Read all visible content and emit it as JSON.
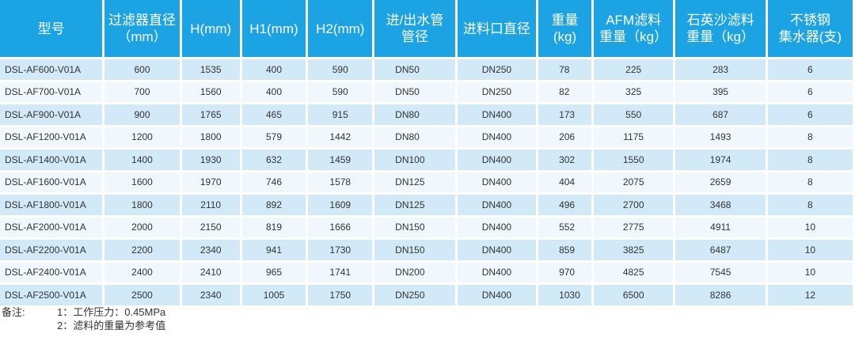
{
  "table": {
    "headers": [
      "型号",
      "过滤器直径\n（mm）",
      "H(mm)",
      "H1(mm)",
      "H2(mm)",
      "进/出水管\n管径",
      "进料口直径",
      "重量\n(kg)",
      "AFM滤料\n重量（kg）",
      "石英沙滤料\n重量（kg）",
      "不锈钢\n集水器(支)"
    ],
    "rows": [
      [
        "DSL-AF600-V01A",
        "600",
        "1535",
        "400",
        "590",
        "DN50",
        "DN250",
        "78",
        "225",
        "283",
        "6"
      ],
      [
        "DSL-AF700-V01A",
        "700",
        "1560",
        "400",
        "590",
        "DN50",
        "DN250",
        "82",
        "325",
        "395",
        "6"
      ],
      [
        "DSL-AF900-V01A",
        "900",
        "1765",
        "465",
        "915",
        "DN80",
        "DN400",
        "173",
        "550",
        "687",
        "6"
      ],
      [
        "DSL-AF1200-V01A",
        "1200",
        "1800",
        "579",
        "1442",
        "DN80",
        "DN400",
        "206",
        "1175",
        "1493",
        "8"
      ],
      [
        "DSL-AF1400-V01A",
        "1400",
        "1930",
        "632",
        "1459",
        "DN100",
        "DN400",
        "302",
        "1550",
        "1974",
        "8"
      ],
      [
        "DSL-AF1600-V01A",
        "1600",
        "1970",
        "746",
        "1578",
        "DN125",
        "DN400",
        "404",
        "2075",
        "2659",
        "8"
      ],
      [
        "DSL-AF1800-V01A",
        "1800",
        "2110",
        "892",
        "1609",
        "DN125",
        "DN400",
        "496",
        "2700",
        "3468",
        "8"
      ],
      [
        "DSL-AF2000-V01A",
        "2000",
        "2150",
        "819",
        "1666",
        "DN150",
        "DN400",
        "552",
        "2775",
        "4911",
        "10"
      ],
      [
        "DSL-AF2200-V01A",
        "2200",
        "2340",
        "941",
        "1730",
        "DN150",
        "DN400",
        "859",
        "3825",
        "6487",
        "10"
      ],
      [
        "DSL-AF2400-V01A",
        "2400",
        "2410",
        "965",
        "1741",
        "DN200",
        "DN400",
        "970",
        "4825",
        "7545",
        "10"
      ],
      [
        "DSL-AF2500-V01A",
        "2500",
        "2340",
        "1005",
        "1750",
        "DN250",
        "DN400",
        "1030",
        "6500",
        "8286",
        "12"
      ]
    ]
  },
  "notes": {
    "label": "备注:",
    "items": [
      "1：工作压力：0.45MPa",
      "2：滤料的重量为参考值"
    ]
  },
  "colors": {
    "header_bg": "#1ba3e3",
    "row_odd": "#d2eaf8",
    "row_even": "#f1f8fd"
  }
}
